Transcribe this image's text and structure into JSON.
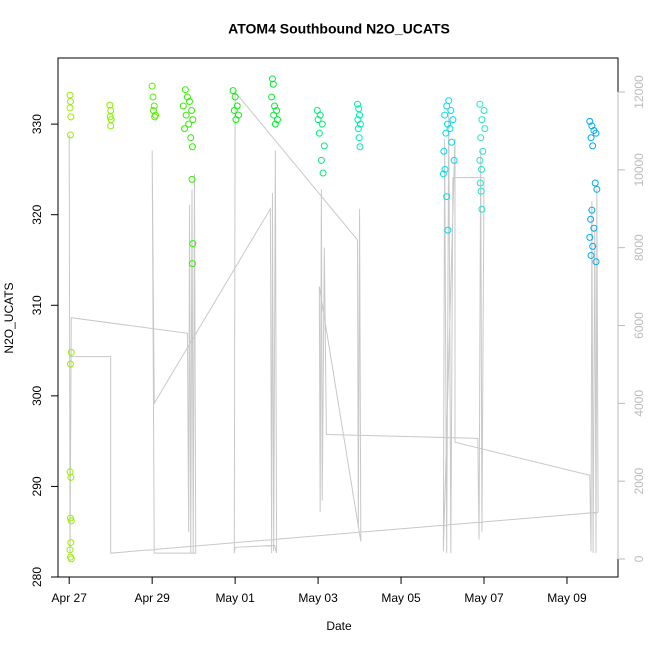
{
  "chart_data": {
    "type": "scatter",
    "title": "ATOM4 Southbound N2O_UCATS",
    "x_label": "Date",
    "y_label": "N2O_UCATS",
    "xlim": [
      -0.27,
      13.23
    ],
    "xticks": [
      {
        "value": 0,
        "label": "Apr 27"
      },
      {
        "value": 2,
        "label": "Apr 29"
      },
      {
        "value": 4,
        "label": "May 01"
      },
      {
        "value": 6,
        "label": "May 03"
      },
      {
        "value": 8,
        "label": "May 05"
      },
      {
        "value": 10,
        "label": "May 07"
      },
      {
        "value": 12,
        "label": "May 09"
      }
    ],
    "ylim": [
      280,
      337.3
    ],
    "yticks": [
      280,
      290,
      300,
      310,
      320,
      330
    ],
    "y2lim": [
      -463,
      12874
    ],
    "y2ticks": [
      0,
      2000,
      4000,
      6000,
      8000,
      10000,
      12000
    ],
    "y2_color": "#bbbbbb",
    "series": [
      {
        "color": "#99ee00",
        "x": [
          0.02,
          0.03,
          0.02,
          0.04,
          0.03,
          0.05,
          0.03,
          0.02,
          0.04,
          0.03,
          0.05,
          0.04,
          0.02,
          0.03,
          0.05
        ],
        "values": [
          333.2,
          332.5,
          331.8,
          330.8,
          328.8,
          304.8,
          303.5,
          291.6,
          291,
          286.5,
          286.2,
          283.8,
          283,
          282.2,
          282
        ]
      },
      {
        "color": "#88ee00",
        "x": [
          0.98,
          1.0,
          0.99,
          1.01,
          1.0
        ],
        "values": [
          332.1,
          331.5,
          330.8,
          330.5,
          329.8
        ]
      },
      {
        "color": "#55ee00",
        "x": [
          2.0,
          2.02,
          2.05,
          2.03,
          2.08,
          2.06
        ],
        "values": [
          334.2,
          333,
          332,
          331.5,
          331,
          330.8
        ]
      },
      {
        "color": "#33ee00",
        "x": [
          2.8,
          2.85,
          2.9,
          2.75,
          2.95,
          2.82,
          2.98,
          2.88,
          2.78,
          2.93,
          2.97,
          2.96,
          2.98,
          2.97
        ],
        "values": [
          333.8,
          333,
          332.5,
          332,
          331.5,
          331,
          330.5,
          330,
          329.5,
          328.5,
          327.5,
          323.9,
          316.8,
          314.6
        ]
      },
      {
        "color": "#11ee11",
        "x": [
          3.95,
          4.0,
          4.05,
          3.98,
          4.08,
          4.02
        ],
        "values": [
          333.7,
          333,
          332,
          331.5,
          331,
          330.5
        ]
      },
      {
        "color": "#00ee33",
        "x": [
          4.9,
          4.92,
          4.88,
          4.95,
          5.0,
          4.93,
          5.02,
          4.97
        ],
        "values": [
          335,
          334.4,
          333,
          332,
          331.5,
          331,
          330.5,
          330
        ]
      },
      {
        "color": "#00ee77",
        "x": [
          5.98,
          6.05,
          6.0,
          6.1,
          6.03,
          6.15,
          6.08,
          6.12
        ],
        "values": [
          331.5,
          331,
          330.5,
          330,
          329,
          327.6,
          326,
          324.6
        ]
      },
      {
        "color": "#00eeaa",
        "x": [
          6.95,
          6.98,
          7.0,
          6.96,
          7.02,
          6.97,
          6.99,
          7.01
        ],
        "values": [
          332.2,
          331.7,
          331,
          330.5,
          330,
          329.5,
          328.5,
          327.5
        ]
      },
      {
        "color": "#00ddee",
        "x": [
          9.15,
          9.1,
          9.2,
          9.05,
          9.25,
          9.12,
          9.18,
          9.08,
          9.22,
          9.03,
          9.28,
          9.06,
          9.02,
          9.1,
          9.13
        ],
        "values": [
          332.6,
          332,
          331.5,
          331,
          330.5,
          330,
          329.5,
          329,
          328,
          327,
          326,
          325,
          324.5,
          322,
          318.3
        ]
      },
      {
        "color": "#22e6cc",
        "x": [
          9.9,
          10.0,
          9.95,
          10.02,
          9.92,
          9.97,
          9.9,
          9.94,
          9.91,
          9.93,
          9.95
        ],
        "values": [
          332.2,
          331.5,
          330.5,
          329.5,
          328.5,
          327,
          326,
          325,
          323.5,
          322.6,
          320.6
        ]
      },
      {
        "color": "#00aaee",
        "x": [
          12.55,
          12.6,
          12.65,
          12.7,
          12.58,
          12.62,
          12.68,
          12.72,
          12.6,
          12.57,
          12.65,
          12.55,
          12.62,
          12.58,
          12.7
        ],
        "values": [
          330.3,
          329.8,
          329.3,
          329,
          328.5,
          327.6,
          323.5,
          322.8,
          320.5,
          319.5,
          318.5,
          317.5,
          316.5,
          315.5,
          314.8
        ]
      },
      {
        "type": "line",
        "axis": "y2",
        "color": "#c8c8c8",
        "x": [
          0.0,
          0.02,
          0.05,
          2.85,
          2.88,
          2.9,
          2.93,
          2.96,
          2.99,
          3.02,
          3.05,
          2.05,
          2.0,
          2.05,
          4.85,
          4.88,
          4.9,
          4.93,
          4.97,
          5.0,
          4.95,
          4.0,
          3.98,
          4.0,
          6.95,
          6.97,
          7.0,
          7.03,
          6.03,
          6.05,
          6.08,
          6.1,
          6.15,
          6.2,
          9.85,
          9.88,
          9.92,
          9.95,
          10.0,
          9.25,
          9.2,
          9.15,
          9.1,
          9.05,
          9.02,
          9.3,
          9.3,
          12.55,
          12.58,
          12.6,
          12.63,
          12.67,
          12.7,
          12.72,
          12.75,
          1.0,
          1.0,
          0.0
        ],
        "values": [
          10900,
          150,
          6200,
          5800,
          700,
          9100,
          150,
          9500,
          150,
          9900,
          150,
          150,
          10500,
          4000,
          9000,
          150,
          9400,
          200,
          10500,
          150,
          350,
          300,
          150,
          12000,
          8200,
          800,
          9000,
          450,
          7000,
          1200,
          9500,
          1500,
          8000,
          3200,
          3100,
          500,
          10500,
          700,
          9800,
          9800,
          150,
          11500,
          150,
          10800,
          200,
          10800,
          3000,
          2150,
          200,
          9200,
          150,
          8500,
          150,
          9500,
          1200,
          150,
          5200,
          5200
        ]
      }
    ]
  }
}
